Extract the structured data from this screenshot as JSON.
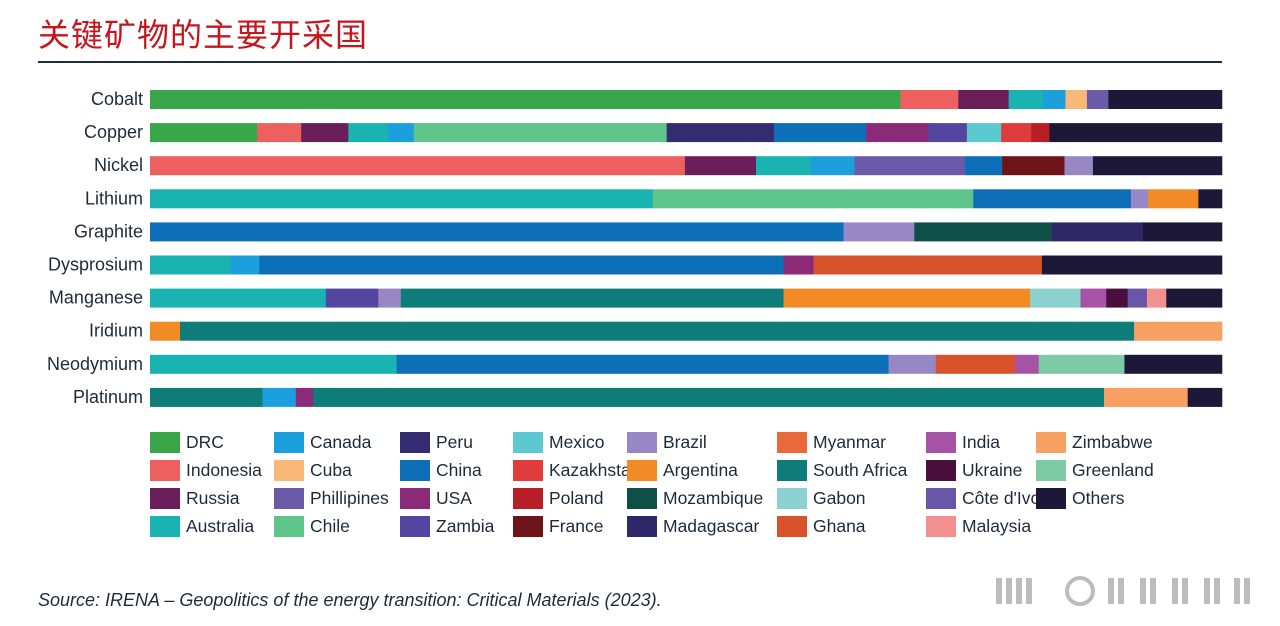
{
  "title": "关键矿物的主要开采国",
  "source": "Source: IRENA – Geopolitics of the energy transition: Critical Materials (2023).",
  "colors": {
    "DRC": "#3aa64a",
    "Indonesia": "#ee6060",
    "Russia": "#6b1f5a",
    "Australia": "#19b3b1",
    "Canada": "#1ca0dd",
    "Cuba": "#f8b878",
    "Phillipines": "#6b5aa8",
    "Chile": "#5ec48a",
    "Peru": "#342c70",
    "China": "#0d6fb8",
    "USA": "#8c2a7a",
    "Zambia": "#5446a0",
    "Mexico": "#5cc9d0",
    "Kazakhstan": "#e03c3c",
    "Poland": "#b81e26",
    "France": "#6e1318",
    "Brazil": "#9787c4",
    "Argentina": "#f28a25",
    "Mozambique": "#0e4f48",
    "Madagascar": "#2e2868",
    "Myanmar": "#e8693a",
    "South Africa": "#0e7c78",
    "Gabon": "#8ad1cf",
    "Ghana": "#d9532a",
    "India": "#a652a6",
    "Ukraine": "#4a0f3c",
    "Côte d'Ivoire": "#6a56a8",
    "Malaysia": "#f29090",
    "Zimbabwe": "#f7a062",
    "Greenland": "#7ccaa6",
    "Others": "#1e1838"
  },
  "legend": [
    "DRC",
    "Indonesia",
    "Russia",
    "Australia",
    "Canada",
    "Cuba",
    "Phillipines",
    "Chile",
    "Peru",
    "China",
    "USA",
    "Zambia",
    "Mexico",
    "Kazakhstan",
    "Poland",
    "France",
    "Brazil",
    "Argentina",
    "Mozambique",
    "Madagascar",
    "Myanmar",
    "South Africa",
    "Gabon",
    "Ghana",
    "India",
    "Ukraine",
    "Côte d'Ivoire",
    "Malaysia",
    "Zimbabwe",
    "Greenland",
    "Others"
  ],
  "chart_data": {
    "type": "bar",
    "orientation": "horizontal",
    "stacked": true,
    "normalized_to": 100,
    "categories": [
      "Cobalt",
      "Copper",
      "Nickel",
      "Lithium",
      "Graphite",
      "Dysprosium",
      "Manganese",
      "Iridium",
      "Neodymium",
      "Platinum"
    ],
    "rows": [
      {
        "name": "Cobalt",
        "segments": [
          {
            "country": "DRC",
            "value": 70.0
          },
          {
            "country": "Indonesia",
            "value": 5.4
          },
          {
            "country": "Russia",
            "value": 4.7
          },
          {
            "country": "Australia",
            "value": 3.2
          },
          {
            "country": "Canada",
            "value": 2.1
          },
          {
            "country": "Cuba",
            "value": 2.0
          },
          {
            "country": "Phillipines",
            "value": 2.0
          },
          {
            "country": "Others",
            "value": 10.6
          }
        ]
      },
      {
        "name": "Copper",
        "segments": [
          {
            "country": "DRC",
            "value": 10.0
          },
          {
            "country": "Indonesia",
            "value": 4.1
          },
          {
            "country": "Russia",
            "value": 4.4
          },
          {
            "country": "Australia",
            "value": 3.7
          },
          {
            "country": "Canada",
            "value": 2.4
          },
          {
            "country": "Chile",
            "value": 23.6
          },
          {
            "country": "Peru",
            "value": 10.0
          },
          {
            "country": "China",
            "value": 8.6
          },
          {
            "country": "USA",
            "value": 5.8
          },
          {
            "country": "Zambia",
            "value": 3.6
          },
          {
            "country": "Mexico",
            "value": 3.2
          },
          {
            "country": "Kazakhstan",
            "value": 2.8
          },
          {
            "country": "Poland",
            "value": 1.7
          },
          {
            "country": "Others",
            "value": 16.1
          }
        ]
      },
      {
        "name": "Nickel",
        "segments": [
          {
            "country": "Indonesia",
            "value": 48.9
          },
          {
            "country": "Russia",
            "value": 6.5
          },
          {
            "country": "Australia",
            "value": 5.0
          },
          {
            "country": "Canada",
            "value": 4.0
          },
          {
            "country": "Phillipines",
            "value": 10.1
          },
          {
            "country": "China",
            "value": 3.4
          },
          {
            "country": "France",
            "value": 5.7
          },
          {
            "country": "Brazil",
            "value": 2.6
          },
          {
            "country": "Others",
            "value": 11.8
          }
        ]
      },
      {
        "name": "Lithium",
        "segments": [
          {
            "country": "Australia",
            "value": 46.9
          },
          {
            "country": "Chile",
            "value": 29.9
          },
          {
            "country": "China",
            "value": 14.7
          },
          {
            "country": "Brazil",
            "value": 1.6
          },
          {
            "country": "Argentina",
            "value": 4.7
          },
          {
            "country": "Others",
            "value": 2.2
          }
        ]
      },
      {
        "name": "Graphite",
        "segments": [
          {
            "country": "China",
            "value": 64.7
          },
          {
            "country": "Brazil",
            "value": 6.6
          },
          {
            "country": "Mozambique",
            "value": 12.8
          },
          {
            "country": "Madagascar",
            "value": 8.5
          },
          {
            "country": "Others",
            "value": 7.4
          }
        ]
      },
      {
        "name": "Dysprosium",
        "segments": [
          {
            "country": "Australia",
            "value": 7.5
          },
          {
            "country": "Canada",
            "value": 2.7
          },
          {
            "country": "China",
            "value": 48.9
          },
          {
            "country": "USA",
            "value": 2.8
          },
          {
            "country": "Ghana",
            "value": 21.3
          },
          {
            "country": "Others",
            "value": 16.8
          }
        ]
      },
      {
        "name": "Manganese",
        "segments": [
          {
            "country": "Australia",
            "value": 16.4
          },
          {
            "country": "Zambia",
            "value": 4.9
          },
          {
            "country": "Brazil",
            "value": 2.1
          },
          {
            "country": "South Africa",
            "value": 35.7
          },
          {
            "country": "Argentina",
            "value": 23.0
          },
          {
            "country": "Gabon",
            "value": 4.7
          },
          {
            "country": "India",
            "value": 2.4
          },
          {
            "country": "Ukraine",
            "value": 2.0
          },
          {
            "country": "Côte d'Ivoire",
            "value": 1.8
          },
          {
            "country": "Malaysia",
            "value": 1.8
          },
          {
            "country": "Others",
            "value": 5.2
          }
        ]
      },
      {
        "name": "Iridium",
        "segments": [
          {
            "country": "Argentina",
            "value": 2.8
          },
          {
            "country": "South Africa",
            "value": 89.0
          },
          {
            "country": "Zimbabwe",
            "value": 8.2
          }
        ]
      },
      {
        "name": "Neodymium",
        "segments": [
          {
            "country": "Australia",
            "value": 23.0
          },
          {
            "country": "China",
            "value": 45.9
          },
          {
            "country": "Brazil",
            "value": 4.4
          },
          {
            "country": "Ghana",
            "value": 7.4
          },
          {
            "country": "India",
            "value": 2.2
          },
          {
            "country": "Greenland",
            "value": 8.0
          },
          {
            "country": "Others",
            "value": 9.1
          }
        ]
      },
      {
        "name": "Platinum",
        "segments": [
          {
            "country": "South Africa",
            "value": 10.5
          },
          {
            "country": "Canada",
            "value": 3.1
          },
          {
            "country": "USA",
            "value": 1.6
          },
          {
            "country": "South Africa",
            "value": 73.8
          },
          {
            "country": "Zimbabwe",
            "value": 7.8
          },
          {
            "country": "Others",
            "value": 3.2
          }
        ]
      }
    ]
  }
}
